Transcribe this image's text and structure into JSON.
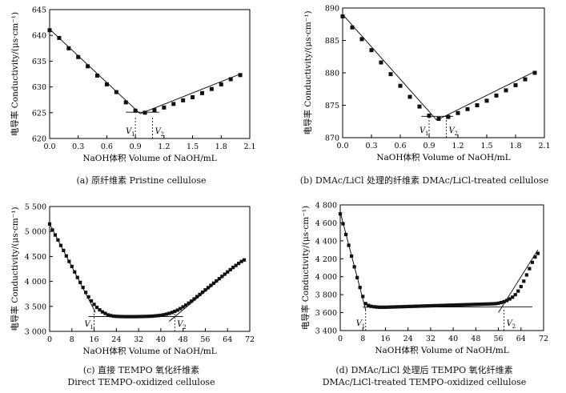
{
  "chart_data": [
    {
      "type": "scatter",
      "panel": "a",
      "xlabel": "NaOH体积 Volume of NaOH/mL",
      "ylabel": "电导率 Conductivity/(μs·cm⁻¹)",
      "xlim": [
        0,
        2.1
      ],
      "ylim": [
        620,
        645
      ],
      "xticks": [
        0.0,
        0.3,
        0.6,
        0.9,
        1.2,
        1.5,
        1.8,
        2.1
      ],
      "xtick_labels": [
        "0.0",
        "0.3",
        "0.6",
        "0.9",
        "1.2",
        "1.5",
        "1.8",
        "2.1"
      ],
      "yticks": [
        620,
        625,
        630,
        635,
        640,
        645
      ],
      "ytick_labels": [
        "620",
        "625",
        "630",
        "635",
        "640",
        "645"
      ],
      "x": [
        0.0,
        0.1,
        0.2,
        0.3,
        0.4,
        0.5,
        0.6,
        0.7,
        0.8,
        0.9,
        1.0,
        1.1,
        1.2,
        1.3,
        1.4,
        1.5,
        1.6,
        1.7,
        1.8,
        1.9,
        2.0
      ],
      "y": [
        641.0,
        639.5,
        637.5,
        635.8,
        634.0,
        632.2,
        630.5,
        629.0,
        627.0,
        625.4,
        625.0,
        625.5,
        626.0,
        626.7,
        627.4,
        628.0,
        628.8,
        629.6,
        630.5,
        631.5,
        632.3
      ],
      "fit_lines": [
        [
          [
            0.0,
            641.2
          ],
          [
            0.95,
            624.8
          ]
        ],
        [
          [
            0.95,
            624.8
          ],
          [
            2.0,
            632.5
          ]
        ],
        [
          [
            0.8,
            625.1
          ],
          [
            1.15,
            625.1
          ]
        ]
      ],
      "markers": [
        {
          "label": "V",
          "sub": "1",
          "x": 0.9
        },
        {
          "label": "V",
          "sub": "2",
          "x": 1.08
        }
      ],
      "caption": [
        "(a)  原纤维素 Pristine cellulose"
      ]
    },
    {
      "type": "scatter",
      "panel": "b",
      "xlabel": "NaOH体积 Volume of NaOH/mL",
      "ylabel": "电导率 Conductivity/(μs·cm⁻¹)",
      "xlim": [
        0,
        2.1
      ],
      "ylim": [
        870,
        890
      ],
      "xticks": [
        0.0,
        0.3,
        0.6,
        0.9,
        1.2,
        1.5,
        1.8,
        2.1
      ],
      "xtick_labels": [
        "0.0",
        "0.3",
        "0.6",
        "0.9",
        "1.2",
        "1.5",
        "1.8",
        "2.1"
      ],
      "yticks": [
        870,
        875,
        880,
        885,
        890
      ],
      "ytick_labels": [
        "870",
        "875",
        "880",
        "885",
        "890"
      ],
      "x": [
        0.0,
        0.1,
        0.2,
        0.3,
        0.4,
        0.5,
        0.6,
        0.7,
        0.8,
        0.9,
        1.0,
        1.1,
        1.2,
        1.3,
        1.4,
        1.5,
        1.6,
        1.7,
        1.8,
        1.9,
        2.0
      ],
      "y": [
        888.7,
        887.0,
        885.2,
        883.5,
        881.6,
        879.8,
        878.0,
        876.3,
        874.8,
        873.4,
        872.9,
        873.2,
        873.8,
        874.4,
        875.0,
        875.7,
        876.5,
        877.3,
        878.1,
        879.0,
        880.0
      ],
      "fit_lines": [
        [
          [
            0.0,
            889.0
          ],
          [
            0.98,
            872.7
          ]
        ],
        [
          [
            0.98,
            872.7
          ],
          [
            2.0,
            880.2
          ]
        ],
        [
          [
            0.82,
            873.3
          ],
          [
            1.15,
            873.3
          ]
        ]
      ],
      "markers": [
        {
          "label": "V",
          "sub": "1",
          "x": 0.9
        },
        {
          "label": "V",
          "sub": "2",
          "x": 1.08
        }
      ],
      "caption": [
        "(b)  DMAc/LiCl 处理的纤维素 DMAc/LiCl-treated cellulose"
      ]
    },
    {
      "type": "scatter",
      "panel": "c",
      "xlabel": "NaOH体积 Volume of NaOH/mL",
      "ylabel": "电导率 Conductivity/(μs·cm⁻¹)",
      "xlim": [
        0,
        72
      ],
      "ylim": [
        3000,
        5500
      ],
      "xticks": [
        0,
        8,
        16,
        24,
        32,
        40,
        48,
        56,
        64,
        72
      ],
      "xtick_labels": [
        "0",
        "8",
        "16",
        "24",
        "32",
        "40",
        "48",
        "56",
        "64",
        "72"
      ],
      "yticks": [
        3000,
        3500,
        4000,
        4500,
        5000,
        5500
      ],
      "ytick_labels": [
        "3 000",
        "3 500",
        "4 000",
        "4 500",
        "5 000",
        "5 500"
      ],
      "x": [
        0,
        1,
        2,
        3,
        4,
        5,
        6,
        7,
        8,
        9,
        10,
        11,
        12,
        13,
        14,
        15,
        16,
        17,
        18,
        19,
        20,
        21,
        22,
        23,
        24,
        25,
        26,
        27,
        28,
        29,
        30,
        31,
        32,
        33,
        34,
        35,
        36,
        37,
        38,
        39,
        40,
        41,
        42,
        43,
        44,
        45,
        46,
        47,
        48,
        49,
        50,
        51,
        52,
        53,
        54,
        55,
        56,
        57,
        58,
        59,
        60,
        61,
        62,
        63,
        64,
        65,
        66,
        67,
        68,
        69,
        70
      ],
      "y": [
        5150,
        5030,
        4930,
        4830,
        4720,
        4620,
        4510,
        4400,
        4300,
        4190,
        4080,
        3980,
        3880,
        3780,
        3690,
        3610,
        3540,
        3480,
        3430,
        3390,
        3360,
        3330,
        3315,
        3305,
        3300,
        3298,
        3296,
        3295,
        3295,
        3295,
        3295,
        3295,
        3296,
        3297,
        3298,
        3300,
        3302,
        3305,
        3310,
        3315,
        3322,
        3332,
        3345,
        3360,
        3378,
        3400,
        3425,
        3455,
        3490,
        3525,
        3565,
        3605,
        3650,
        3695,
        3740,
        3785,
        3830,
        3875,
        3920,
        3965,
        4010,
        4055,
        4100,
        4145,
        4190,
        4235,
        4280,
        4320,
        4360,
        4400,
        4430
      ],
      "fit_lines": [
        [
          [
            0,
            5150
          ],
          [
            16.5,
            3380
          ]
        ],
        [
          [
            14,
            3295
          ],
          [
            48,
            3295
          ]
        ],
        [
          [
            43,
            3200
          ],
          [
            70,
            4450
          ]
        ]
      ],
      "markers": [
        {
          "label": "V",
          "sub": "1",
          "x": 16
        },
        {
          "label": "V",
          "sub": "2",
          "x": 45
        }
      ],
      "caption": [
        "(c)  直接 TEMPO 氧化纤维素",
        "Direct TEMPO-oxidized cellulose"
      ]
    },
    {
      "type": "scatter",
      "panel": "d",
      "xlabel": "NaOH体积 Volume of NaOH/mL",
      "ylabel": "电导率 Conductivity/(μs·cm⁻¹)",
      "xlim": [
        0,
        72
      ],
      "ylim": [
        3400,
        4800
      ],
      "xticks": [
        0,
        8,
        16,
        24,
        32,
        40,
        48,
        56,
        64,
        72
      ],
      "xtick_labels": [
        "0",
        "8",
        "16",
        "24",
        "32",
        "40",
        "48",
        "56",
        "64",
        "72"
      ],
      "yticks": [
        3400,
        3600,
        3800,
        4000,
        4200,
        4400,
        4600,
        4800
      ],
      "ytick_labels": [
        "3 400",
        "3 600",
        "3 800",
        "4 000",
        "4 200",
        "4 400",
        "4 600",
        "4 800"
      ],
      "x": [
        0,
        1,
        2,
        3,
        4,
        5,
        6,
        7,
        8,
        9,
        10,
        11,
        12,
        13,
        14,
        15,
        16,
        17,
        18,
        19,
        20,
        21,
        22,
        23,
        24,
        25,
        26,
        27,
        28,
        29,
        30,
        31,
        32,
        33,
        34,
        35,
        36,
        37,
        38,
        39,
        40,
        41,
        42,
        43,
        44,
        45,
        46,
        47,
        48,
        49,
        50,
        51,
        52,
        53,
        54,
        55,
        56,
        57,
        58,
        59,
        60,
        61,
        62,
        63,
        64,
        65,
        66,
        67,
        68,
        69,
        70
      ],
      "y": [
        4700,
        4590,
        4470,
        4350,
        4230,
        4110,
        3990,
        3880,
        3780,
        3700,
        3680,
        3670,
        3665,
        3662,
        3660,
        3660,
        3660,
        3661,
        3662,
        3663,
        3664,
        3665,
        3666,
        3667,
        3668,
        3669,
        3670,
        3671,
        3672,
        3673,
        3674,
        3675,
        3676,
        3677,
        3678,
        3679,
        3680,
        3681,
        3682,
        3683,
        3684,
        3685,
        3686,
        3687,
        3688,
        3689,
        3690,
        3691,
        3692,
        3693,
        3694,
        3695,
        3696,
        3697,
        3698,
        3700,
        3705,
        3712,
        3722,
        3735,
        3752,
        3772,
        3800,
        3840,
        3890,
        3950,
        4020,
        4090,
        4160,
        4220,
        4260
      ],
      "fit_lines": [
        [
          [
            0,
            4720
          ],
          [
            9,
            3630
          ]
        ],
        [
          [
            8,
            3660
          ],
          [
            68,
            3665
          ]
        ],
        [
          [
            56,
            3600
          ],
          [
            70,
            4300
          ]
        ]
      ],
      "markers": [
        {
          "label": "V",
          "sub": "1",
          "x": 9
        },
        {
          "label": "V",
          "sub": "2",
          "x": 58
        }
      ],
      "caption": [
        "(d)  DMAc/LiCl 处理后 TEMPO 氧化纤维素",
        "DMAc/LiCl-treated TEMPO-oxidized cellulose"
      ]
    }
  ]
}
